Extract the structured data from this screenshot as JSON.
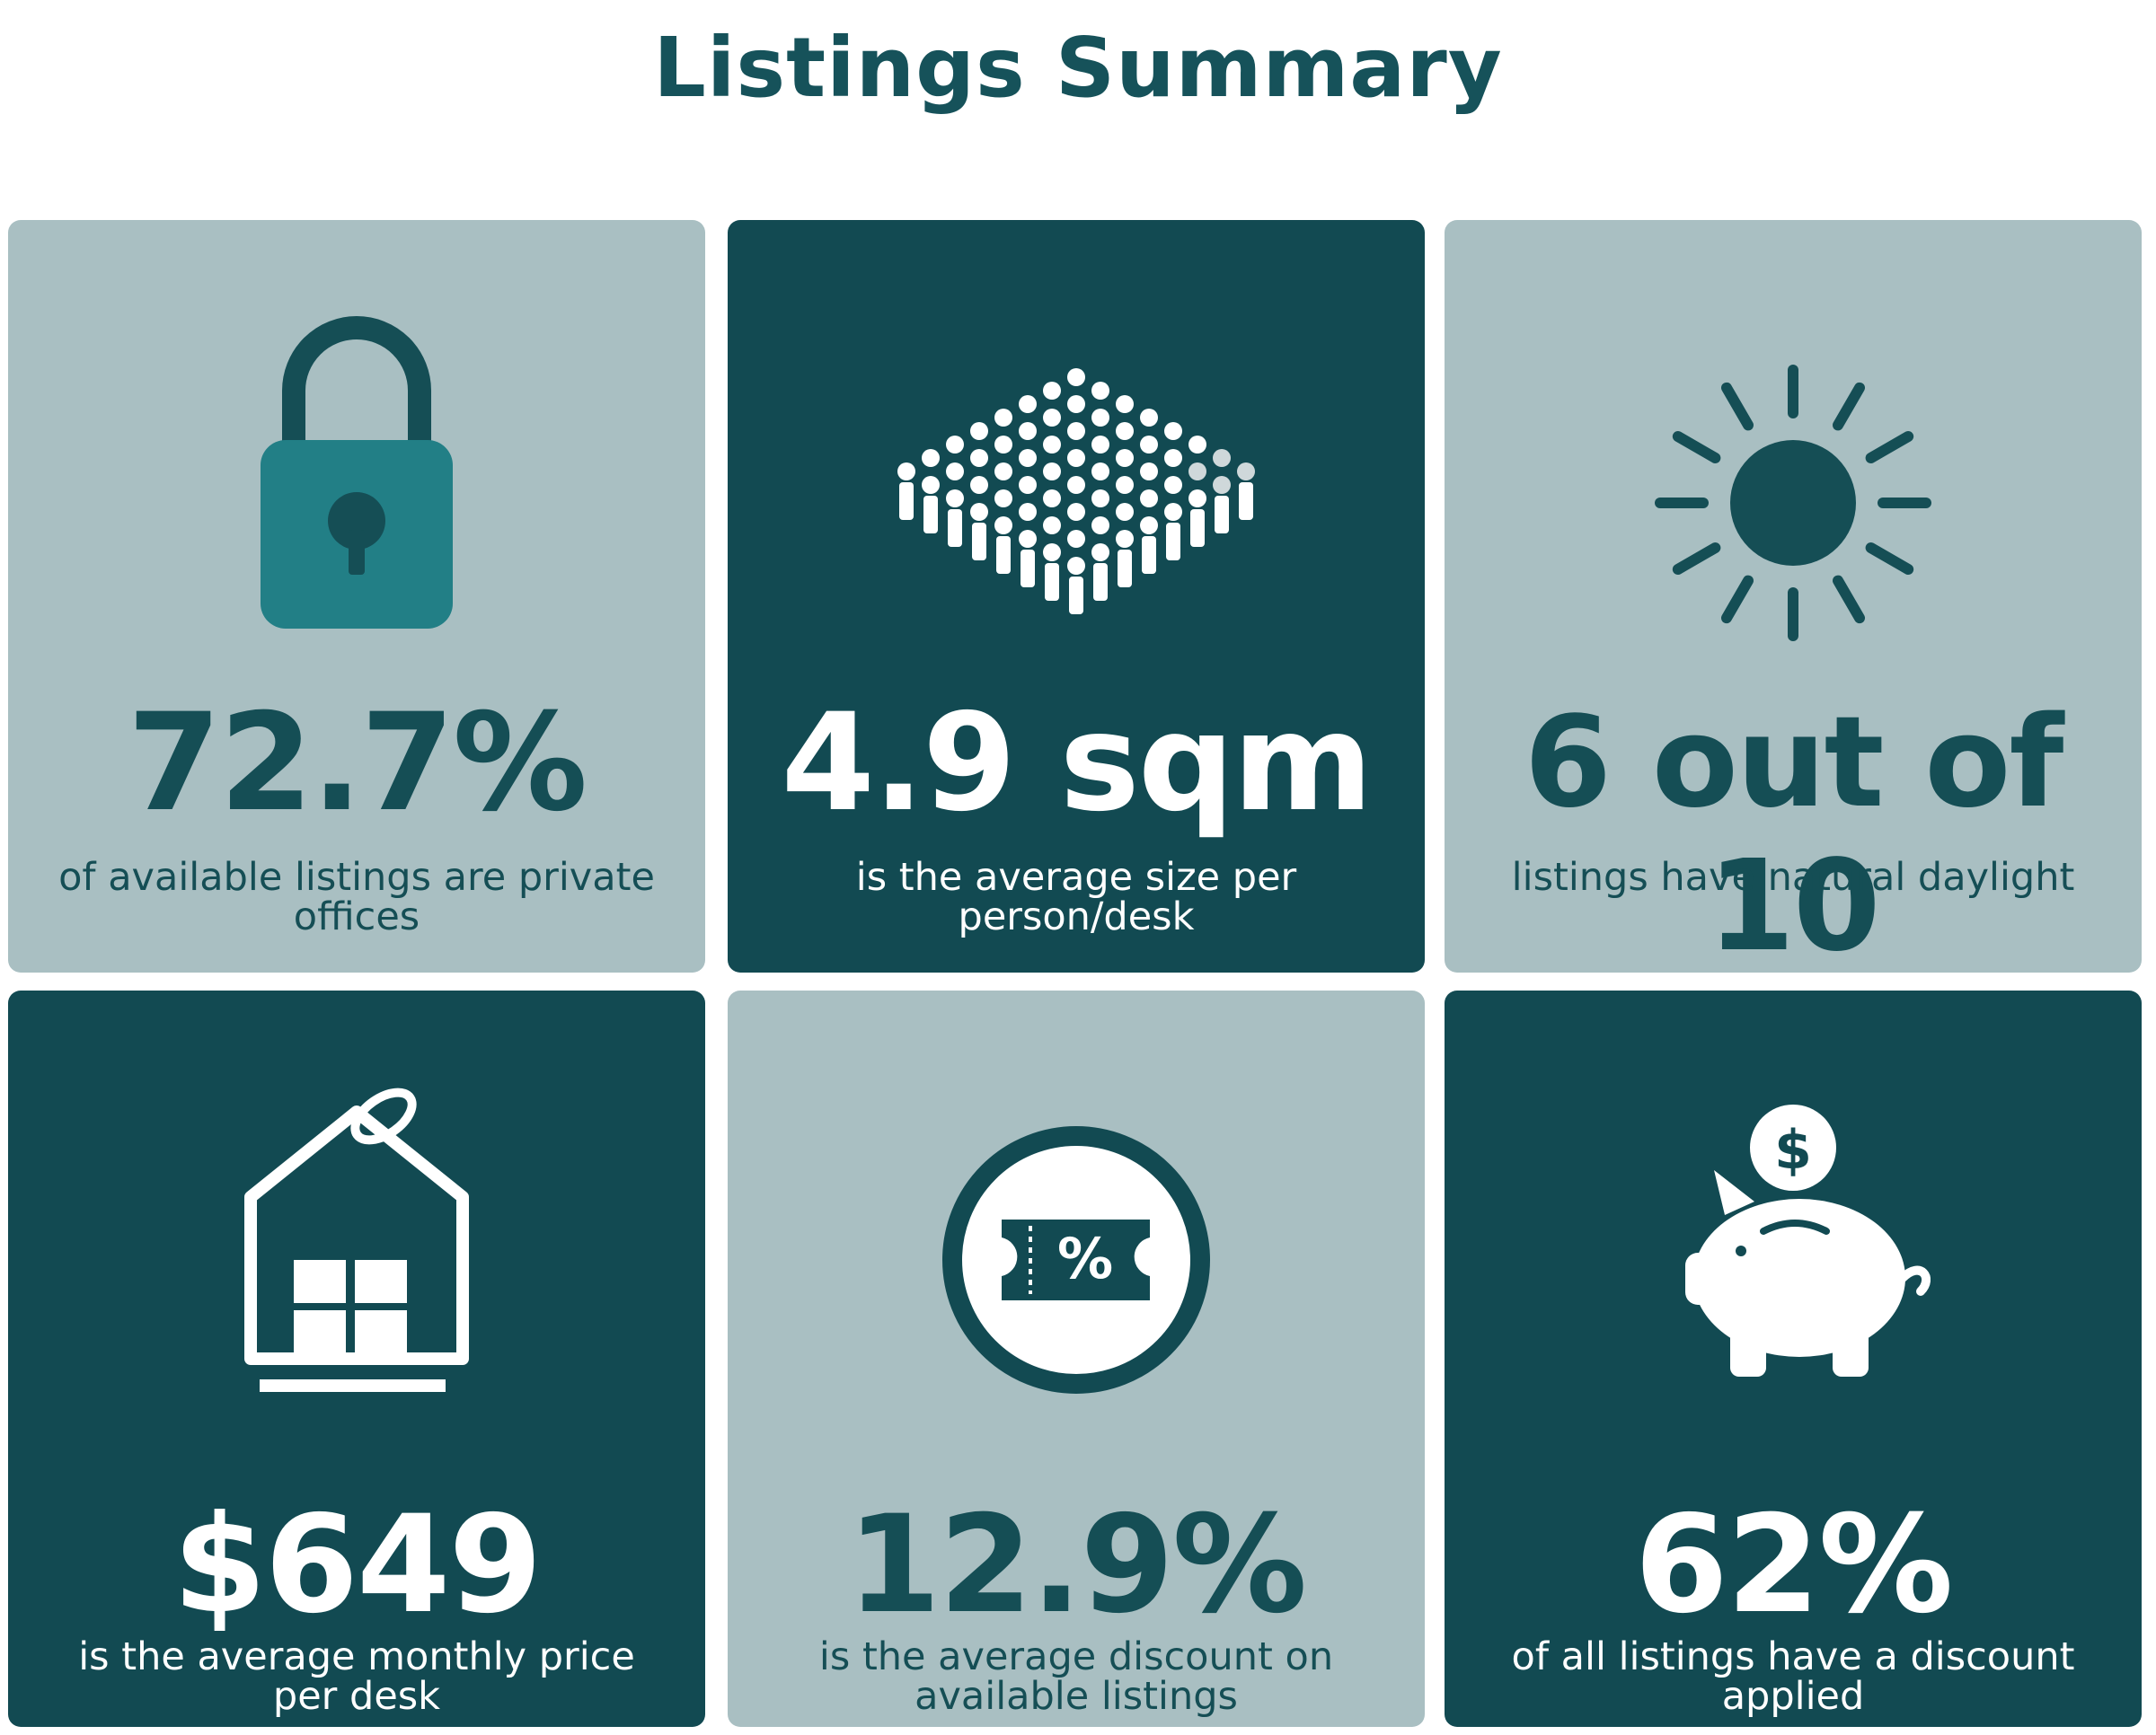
{
  "page": {
    "title": "Listings Summary"
  },
  "colors": {
    "dark_teal": "#124a52",
    "light_gray_teal": "#a9bfc2",
    "lock_teal": "#227f86",
    "title": "#16525a"
  },
  "cards": [
    {
      "icon": "padlock-icon",
      "theme": "light",
      "stat": "72.7%",
      "description": "of available listings are private offices"
    },
    {
      "icon": "crowd-icon",
      "theme": "dark",
      "stat": "4.9 sqm",
      "description": "is the average size per person/desk"
    },
    {
      "icon": "sun-icon",
      "theme": "light",
      "stat": "6 out of 10",
      "description": "listings have natural daylight"
    },
    {
      "icon": "house-price-tag-icon",
      "theme": "dark",
      "stat": "$649",
      "description": "is the average monthly price per desk"
    },
    {
      "icon": "discount-ticket-icon",
      "theme": "light",
      "stat": "12.9%",
      "description": "is the average discount on available listings"
    },
    {
      "icon": "piggy-bank-icon",
      "theme": "dark",
      "stat": "62%",
      "description": "of all listings have a discount applied",
      "icon_text": "$"
    }
  ],
  "ticket_symbol": "%"
}
